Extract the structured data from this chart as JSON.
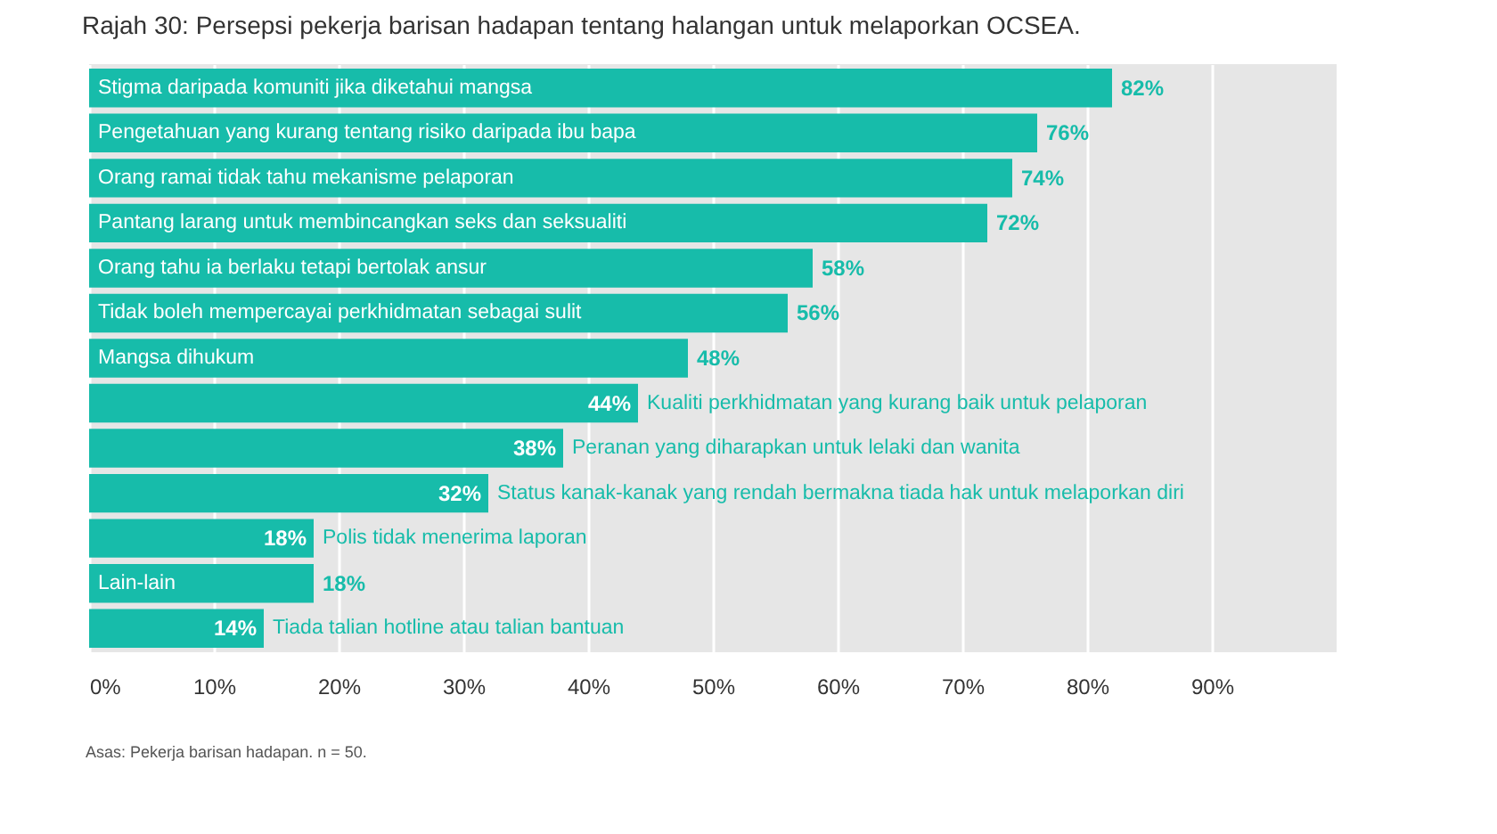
{
  "chart_data": {
    "type": "bar",
    "orientation": "horizontal",
    "title": "Rajah 30: Persepsi pekerja barisan hadapan tentang halangan untuk melaporkan OCSEA.",
    "categories": [
      "Stigma daripada komuniti jika diketahui mangsa",
      "Pengetahuan yang kurang tentang risiko daripada ibu bapa",
      "Orang ramai tidak tahu mekanisme pelaporan",
      "Pantang larang untuk membincangkan seks dan seksualiti",
      "Orang tahu ia berlaku tetapi bertolak ansur",
      "Tidak boleh mempercayai perkhidmatan sebagai sulit",
      "Mangsa dihukum",
      "Kualiti perkhidmatan yang kurang baik untuk pelaporan",
      "Peranan yang diharapkan untuk lelaki dan wanita",
      "Status kanak-kanak yang rendah bermakna tiada hak untuk melaporkan diri",
      "Polis tidak menerima laporan",
      "Lain-lain",
      "Tiada talian hotline atau talian bantuan"
    ],
    "values": [
      82,
      76,
      74,
      72,
      58,
      56,
      48,
      44,
      38,
      32,
      18,
      18,
      14
    ],
    "value_labels": [
      "82%",
      "76%",
      "74%",
      "72%",
      "58%",
      "56%",
      "48%",
      "44%",
      "38%",
      "32%",
      "18%",
      "18%",
      "14%"
    ],
    "color": "#17bcaa",
    "xlim": [
      0,
      100
    ],
    "xticks": [
      {
        "value": 0,
        "label": "0%"
      },
      {
        "value": 10,
        "label": "10%"
      },
      {
        "value": 20,
        "label": "20%"
      },
      {
        "value": 30,
        "label": "30%"
      },
      {
        "value": 40,
        "label": "40%"
      },
      {
        "value": 50,
        "label": "50%"
      },
      {
        "value": 60,
        "label": "60%"
      },
      {
        "value": 70,
        "label": "70%"
      },
      {
        "value": 80,
        "label": "80%"
      },
      {
        "value": 90,
        "label": "90%"
      }
    ],
    "grid": "x",
    "tick_labels": "x",
    "annotations": [
      "Asas: Pekerja barisan hadapan. n = 50."
    ]
  }
}
